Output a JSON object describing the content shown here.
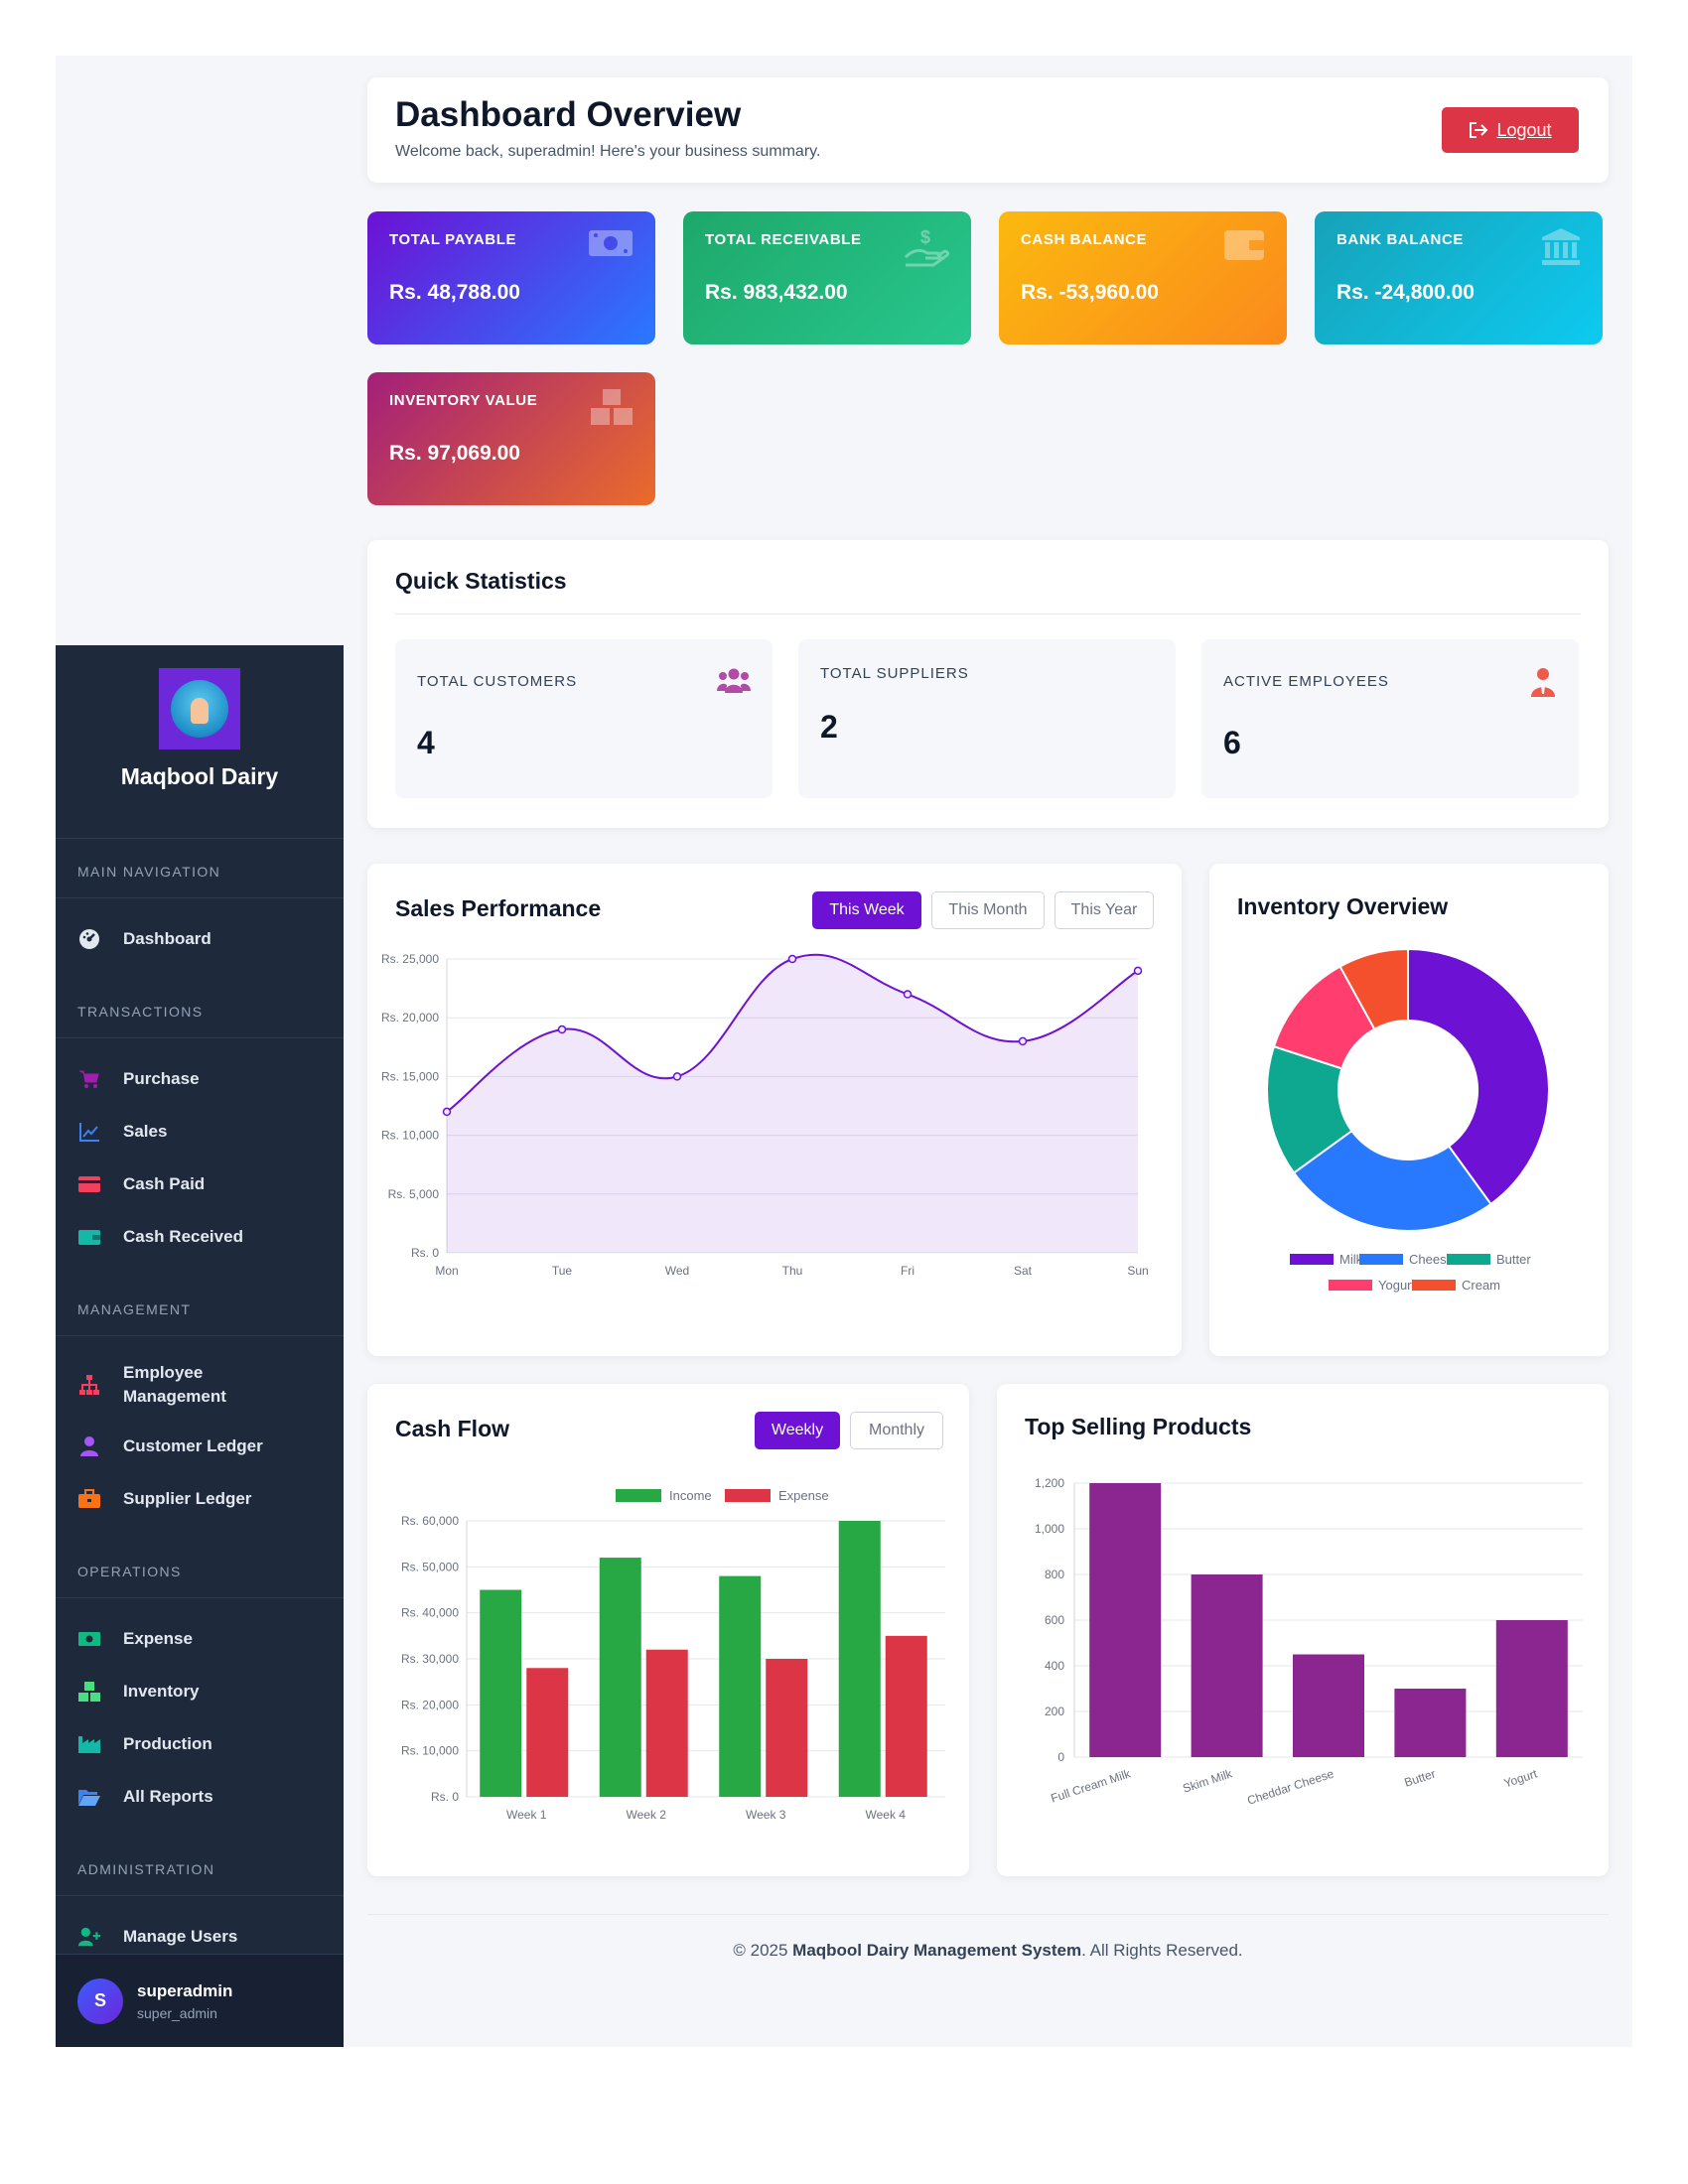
{
  "sidebar": {
    "brand": "Maqbool Dairy",
    "sections": {
      "main": "MAIN NAVIGATION",
      "transactions": "TRANSACTIONS",
      "management": "MANAGEMENT",
      "operations": "OPERATIONS",
      "administration": "ADMINISTRATION"
    },
    "items": {
      "dashboard": "Dashboard",
      "purchase": "Purchase",
      "sales": "Sales",
      "cash_paid": "Cash Paid",
      "cash_received": "Cash Received",
      "employee_1": "Employee",
      "employee_2": "Management",
      "customer_ledger": "Customer Ledger",
      "supplier_ledger": "Supplier Ledger",
      "expense": "Expense",
      "inventory": "Inventory",
      "production": "Production",
      "all_reports": "All Reports",
      "manage_users": "Manage Users"
    },
    "user": {
      "initial": "S",
      "name": "superadmin",
      "role": "super_admin"
    }
  },
  "header": {
    "title": "Dashboard Overview",
    "subtitle": "Welcome back, superadmin! Here's your business summary.",
    "logout": "Logout"
  },
  "stats": [
    {
      "label": "TOTAL PAYABLE",
      "value": "Rs. 48,788.00",
      "icon": "money-icon"
    },
    {
      "label": "TOTAL RECEIVABLE",
      "value": "Rs. 983,432.00",
      "icon": "hand-dollar-icon"
    },
    {
      "label": "CASH BALANCE",
      "value": "Rs. -53,960.00",
      "icon": "wallet-icon"
    },
    {
      "label": "BANK BALANCE",
      "value": "Rs. -24,800.00",
      "icon": "bank-icon"
    },
    {
      "label": "INVENTORY VALUE",
      "value": "Rs. 97,069.00",
      "icon": "boxes-icon"
    }
  ],
  "quick": {
    "title": "Quick Statistics",
    "customers_label": "TOTAL CUSTOMERS",
    "customers": "4",
    "suppliers_label": "TOTAL SUPPLIERS",
    "suppliers": "2",
    "employees_label": "ACTIVE EMPLOYEES",
    "employees": "6"
  },
  "sales_card": {
    "title": "Sales Performance",
    "tabs": [
      "This Week",
      "This Month",
      "This Year"
    ]
  },
  "inventory_card": {
    "title": "Inventory Overview"
  },
  "cash_card": {
    "title": "Cash Flow",
    "tabs": [
      "Weekly",
      "Monthly"
    ]
  },
  "top_card": {
    "title": "Top Selling Products"
  },
  "chart_data": [
    {
      "id": "sales",
      "type": "line",
      "title": "Sales Performance",
      "categories": [
        "Mon",
        "Tue",
        "Wed",
        "Thu",
        "Fri",
        "Sat",
        "Sun"
      ],
      "values": [
        12000,
        19000,
        15000,
        25000,
        22000,
        18000,
        24000
      ],
      "ylim": [
        0,
        25000
      ],
      "yticks": [
        0,
        5000,
        10000,
        15000,
        20000,
        25000
      ],
      "ytick_labels": [
        "Rs. 0",
        "Rs. 5,000",
        "Rs. 10,000",
        "Rs. 15,000",
        "Rs. 20,000",
        "Rs. 25,000"
      ],
      "color": "#6d11d4"
    },
    {
      "id": "inventory",
      "type": "pie",
      "title": "Inventory Overview",
      "labels": [
        "Milk",
        "Cheese",
        "Butter",
        "Yogurt",
        "Cream"
      ],
      "values": [
        40,
        25,
        15,
        12,
        8
      ],
      "colors": [
        "#6d11d4",
        "#2979ff",
        "#0ea891",
        "#ff3d6e",
        "#f5502e"
      ]
    },
    {
      "id": "cashflow",
      "type": "bar",
      "title": "Cash Flow",
      "categories": [
        "Week 1",
        "Week 2",
        "Week 3",
        "Week 4"
      ],
      "series": [
        {
          "name": "Income",
          "values": [
            45000,
            52000,
            48000,
            60000
          ],
          "color": "#28a745"
        },
        {
          "name": "Expense",
          "values": [
            28000,
            32000,
            30000,
            35000
          ],
          "color": "#dc3545"
        }
      ],
      "ylim": [
        0,
        60000
      ],
      "yticks": [
        0,
        10000,
        20000,
        30000,
        40000,
        50000,
        60000
      ],
      "ytick_labels": [
        "Rs. 0",
        "Rs. 10,000",
        "Rs. 20,000",
        "Rs. 30,000",
        "Rs. 40,000",
        "Rs. 50,000",
        "Rs. 60,000"
      ]
    },
    {
      "id": "topproducts",
      "type": "bar",
      "title": "Top Selling Products",
      "categories": [
        "Full Cream Milk",
        "Skim Milk",
        "Cheddar Cheese",
        "Butter",
        "Yogurt"
      ],
      "values": [
        1200,
        800,
        450,
        300,
        600
      ],
      "ylim": [
        0,
        1200
      ],
      "yticks": [
        0,
        200,
        400,
        600,
        800,
        1000,
        1200
      ],
      "ytick_labels": [
        "0",
        "200",
        "400",
        "600",
        "800",
        "1,000",
        "1,200"
      ],
      "color": "#8b2590"
    }
  ],
  "footer": {
    "prefix": "© 2025 ",
    "name": "Maqbool Dairy Management System",
    "suffix": ". All Rights Reserved."
  }
}
